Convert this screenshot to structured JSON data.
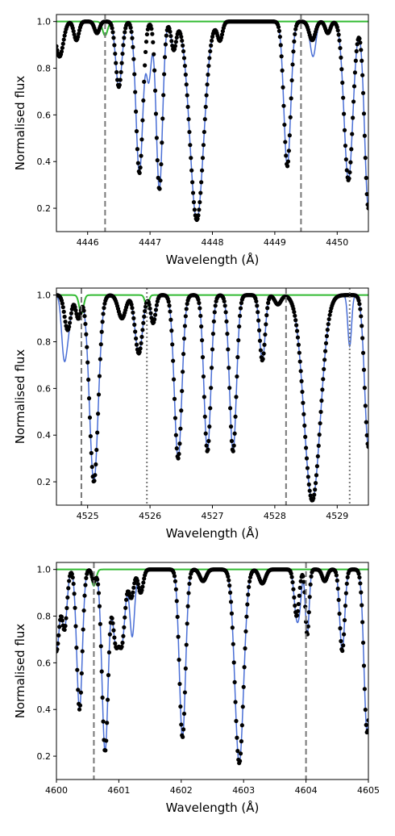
{
  "chart_data": [
    {
      "type": "line",
      "xlabel": "Wavelength (Å)",
      "ylabel": "Normalised flux",
      "xlim": [
        4445.5,
        4450.5
      ],
      "ylim": [
        0.1,
        1.03
      ],
      "xticks": [
        4446,
        4447,
        4448,
        4449,
        4450
      ],
      "yticks": [
        0.2,
        0.4,
        0.6,
        0.8,
        1.0
      ],
      "x_tick_labels": [
        "4446",
        "4447",
        "4448",
        "4449",
        "4450"
      ],
      "y_tick_labels": [
        "0.2",
        "0.4",
        "0.6",
        "0.8",
        "1.0"
      ],
      "colors": {
        "observed": "#000000",
        "model": "#4a6fd6",
        "secondary": "#33bb33",
        "markers": "#777777"
      },
      "vlines": [
        {
          "x": 4446.28,
          "style": "dashed"
        },
        {
          "x": 4449.42,
          "style": "dashed"
        }
      ],
      "lines": [
        {
          "center": 4445.55,
          "depth": 0.15,
          "width": 0.06
        },
        {
          "center": 4445.82,
          "depth": 0.08,
          "width": 0.04
        },
        {
          "center": 4446.15,
          "depth": 0.05,
          "width": 0.04
        },
        {
          "center": 4446.5,
          "depth": 0.28,
          "width": 0.05
        },
        {
          "center": 4446.83,
          "depth": 0.65,
          "width": 0.055
        },
        {
          "center": 4447.15,
          "depth": 0.72,
          "width": 0.05
        },
        {
          "center": 4447.38,
          "depth": 0.12,
          "width": 0.04
        },
        {
          "center": 4447.75,
          "depth": 0.85,
          "width": 0.11
        },
        {
          "center": 4448.12,
          "depth": 0.08,
          "width": 0.04
        },
        {
          "center": 4449.2,
          "depth": 0.62,
          "width": 0.055
        },
        {
          "center": 4449.6,
          "depth": 0.08,
          "width": 0.05
        },
        {
          "center": 4449.85,
          "depth": 0.05,
          "width": 0.04
        },
        {
          "center": 4450.18,
          "depth": 0.68,
          "width": 0.07
        },
        {
          "center": 4450.5,
          "depth": 0.8,
          "width": 0.06
        }
      ],
      "model_extra": [
        {
          "center": 4446.98,
          "depth": 0.25,
          "width": 0.04
        },
        {
          "center": 4449.62,
          "depth": 0.08,
          "width": 0.04
        }
      ],
      "secondary_lines": [
        {
          "center": 4446.28,
          "depth": 0.06,
          "width": 0.04
        }
      ]
    },
    {
      "type": "line",
      "xlabel": "Wavelength (Å)",
      "ylabel": "Normalised flux",
      "xlim": [
        4524.5,
        4529.5
      ],
      "ylim": [
        0.1,
        1.03
      ],
      "xticks": [
        4525,
        4526,
        4527,
        4528,
        4529
      ],
      "yticks": [
        0.2,
        0.4,
        0.6,
        0.8,
        1.0
      ],
      "x_tick_labels": [
        "4525",
        "4526",
        "4527",
        "4528",
        "4529"
      ],
      "y_tick_labels": [
        "0.2",
        "0.4",
        "0.6",
        "0.8",
        "1.0"
      ],
      "colors": {
        "observed": "#000000",
        "model": "#4a6fd6",
        "secondary": "#33bb33",
        "markers": "#777777"
      },
      "vlines": [
        {
          "x": 4524.9,
          "style": "dashed"
        },
        {
          "x": 4525.95,
          "style": "dotted"
        },
        {
          "x": 4528.18,
          "style": "dashed"
        },
        {
          "x": 4529.2,
          "style": "dotted"
        }
      ],
      "lines": [
        {
          "center": 4524.68,
          "depth": 0.15,
          "width": 0.05
        },
        {
          "center": 4524.85,
          "depth": 0.1,
          "width": 0.04
        },
        {
          "center": 4525.1,
          "depth": 0.8,
          "width": 0.07
        },
        {
          "center": 4525.55,
          "depth": 0.1,
          "width": 0.06
        },
        {
          "center": 4525.82,
          "depth": 0.25,
          "width": 0.06
        },
        {
          "center": 4526.05,
          "depth": 0.12,
          "width": 0.04
        },
        {
          "center": 4526.45,
          "depth": 0.7,
          "width": 0.06
        },
        {
          "center": 4526.92,
          "depth": 0.67,
          "width": 0.055
        },
        {
          "center": 4527.33,
          "depth": 0.67,
          "width": 0.055
        },
        {
          "center": 4527.8,
          "depth": 0.28,
          "width": 0.045
        },
        {
          "center": 4528.05,
          "depth": 0.04,
          "width": 0.05
        },
        {
          "center": 4528.6,
          "depth": 0.88,
          "width": 0.13
        },
        {
          "center": 4529.5,
          "depth": 0.65,
          "width": 0.06
        }
      ],
      "model_extra": [
        {
          "center": 4524.62,
          "depth": 0.22,
          "width": 0.04
        },
        {
          "center": 4529.2,
          "depth": 0.22,
          "width": 0.03
        }
      ],
      "secondary_lines": [
        {
          "center": 4524.9,
          "depth": 0.08,
          "width": 0.035
        },
        {
          "center": 4525.95,
          "depth": 0.05,
          "width": 0.03
        }
      ]
    },
    {
      "type": "line",
      "xlabel": "Wavelength (Å)",
      "ylabel": "Normalised flux",
      "xlim": [
        4600,
        4605
      ],
      "ylim": [
        0.1,
        1.03
      ],
      "xticks": [
        4600,
        4601,
        4602,
        4603,
        4604,
        4605
      ],
      "yticks": [
        0.2,
        0.4,
        0.6,
        0.8,
        1.0
      ],
      "x_tick_labels": [
        "4600",
        "4601",
        "4602",
        "4603",
        "4604",
        "4605"
      ],
      "y_tick_labels": [
        "0.2",
        "0.4",
        "0.6",
        "0.8",
        "1.0"
      ],
      "colors": {
        "observed": "#000000",
        "model": "#4a6fd6",
        "secondary": "#33bb33",
        "markers": "#777777"
      },
      "vlines": [
        {
          "x": 4600.6,
          "style": "dashed"
        },
        {
          "x": 4604.0,
          "style": "dashed"
        }
      ],
      "lines": [
        {
          "center": 4600.0,
          "depth": 0.35,
          "width": 0.05
        },
        {
          "center": 4600.13,
          "depth": 0.25,
          "width": 0.04
        },
        {
          "center": 4600.37,
          "depth": 0.6,
          "width": 0.045
        },
        {
          "center": 4600.6,
          "depth": 0.05,
          "width": 0.03
        },
        {
          "center": 4600.78,
          "depth": 0.78,
          "width": 0.05
        },
        {
          "center": 4600.95,
          "depth": 0.3,
          "width": 0.05
        },
        {
          "center": 4601.05,
          "depth": 0.3,
          "width": 0.05
        },
        {
          "center": 4601.2,
          "depth": 0.12,
          "width": 0.04
        },
        {
          "center": 4601.35,
          "depth": 0.1,
          "width": 0.04
        },
        {
          "center": 4602.02,
          "depth": 0.72,
          "width": 0.05
        },
        {
          "center": 4602.35,
          "depth": 0.05,
          "width": 0.05
        },
        {
          "center": 4602.93,
          "depth": 0.83,
          "width": 0.07
        },
        {
          "center": 4603.3,
          "depth": 0.06,
          "width": 0.05
        },
        {
          "center": 4603.85,
          "depth": 0.2,
          "width": 0.04
        },
        {
          "center": 4604.02,
          "depth": 0.28,
          "width": 0.03
        },
        {
          "center": 4604.3,
          "depth": 0.05,
          "width": 0.04
        },
        {
          "center": 4604.58,
          "depth": 0.35,
          "width": 0.04
        },
        {
          "center": 4604.98,
          "depth": 0.7,
          "width": 0.05
        }
      ],
      "model_extra": [
        {
          "center": 4601.22,
          "depth": 0.2,
          "width": 0.035
        },
        {
          "center": 4603.9,
          "depth": 0.1,
          "width": 0.03
        }
      ],
      "secondary_lines": [
        {
          "center": 4600.6,
          "depth": 0.07,
          "width": 0.035
        }
      ]
    }
  ]
}
